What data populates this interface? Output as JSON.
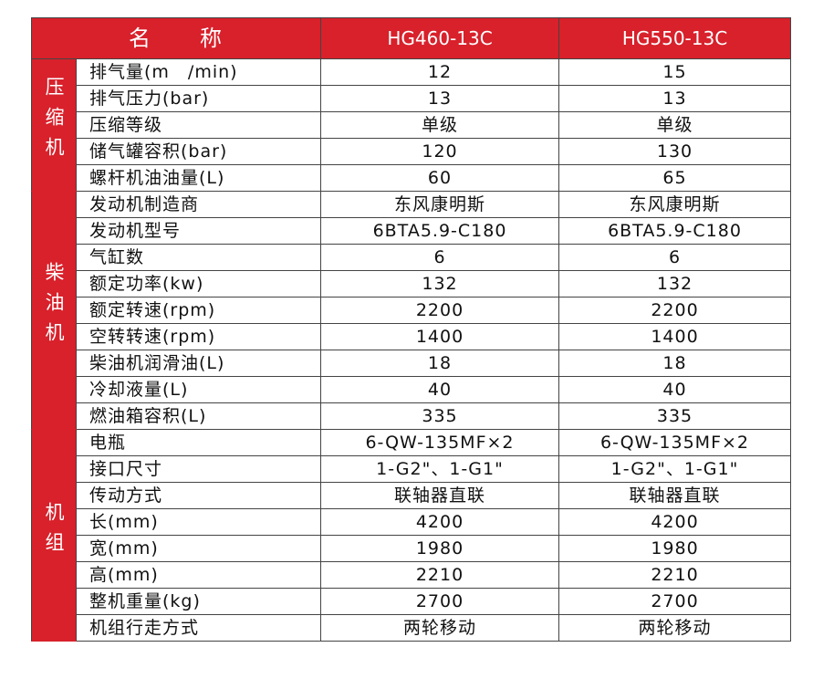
{
  "header": {
    "name": "名　　称",
    "models": [
      "HG460-13C",
      "HG550-13C"
    ]
  },
  "groups": [
    {
      "label": "压缩机",
      "rows": [
        {
          "name": "排气量(m　/min)",
          "v": [
            "12",
            "15"
          ]
        },
        {
          "name": "排气压力(bar)",
          "v": [
            "13",
            "13"
          ]
        },
        {
          "name": "压缩等级",
          "v": [
            "单级",
            "单级"
          ]
        },
        {
          "name": "储气罐容积(bar)",
          "v": [
            "120",
            "130"
          ]
        },
        {
          "name": "螺杆机油油量(L)",
          "v": [
            "60",
            "65"
          ]
        }
      ]
    },
    {
      "label": "柴油机",
      "rows": [
        {
          "name": "发动机制造商",
          "v": [
            "东风康明斯",
            "东风康明斯"
          ]
        },
        {
          "name": "发动机型号",
          "v": [
            "6BTA5.9-C180",
            "6BTA5.9-C180"
          ]
        },
        {
          "name": "气缸数",
          "v": [
            "6",
            "6"
          ]
        },
        {
          "name": "额定功率(kw)",
          "v": [
            "132",
            "132"
          ]
        },
        {
          "name": "额定转速(rpm)",
          "v": [
            "2200",
            "2200"
          ]
        },
        {
          "name": "空转转速(rpm)",
          "v": [
            "1400",
            "1400"
          ]
        },
        {
          "name": "柴油机润滑油(L)",
          "v": [
            "18",
            "18"
          ]
        },
        {
          "name": "冷却液量(L)",
          "v": [
            "40",
            "40"
          ]
        },
        {
          "name": "燃油箱容积(L)",
          "v": [
            "335",
            "335"
          ]
        }
      ]
    },
    {
      "label": "机组",
      "rows": [
        {
          "name": "电瓶",
          "v": [
            "6-QW-135MF×2",
            "6-QW-135MF×2"
          ]
        },
        {
          "name": "接口尺寸",
          "v": [
            "1-G2\"、1-G1\"",
            "1-G2\"、1-G1\""
          ]
        },
        {
          "name": "传动方式",
          "v": [
            "联轴器直联",
            "联轴器直联"
          ]
        },
        {
          "name": "长(mm)",
          "v": [
            "4200",
            "4200"
          ]
        },
        {
          "name": "宽(mm)",
          "v": [
            "1980",
            "1980"
          ]
        },
        {
          "name": "高(mm)",
          "v": [
            "2210",
            "2210"
          ]
        },
        {
          "name": "整机重量(kg)",
          "v": [
            "2700",
            "2700"
          ]
        },
        {
          "name": "机组行走方式",
          "v": [
            "两轮移动",
            "两轮移动"
          ]
        }
      ]
    }
  ],
  "colors": {
    "accent": "#d8212b"
  }
}
